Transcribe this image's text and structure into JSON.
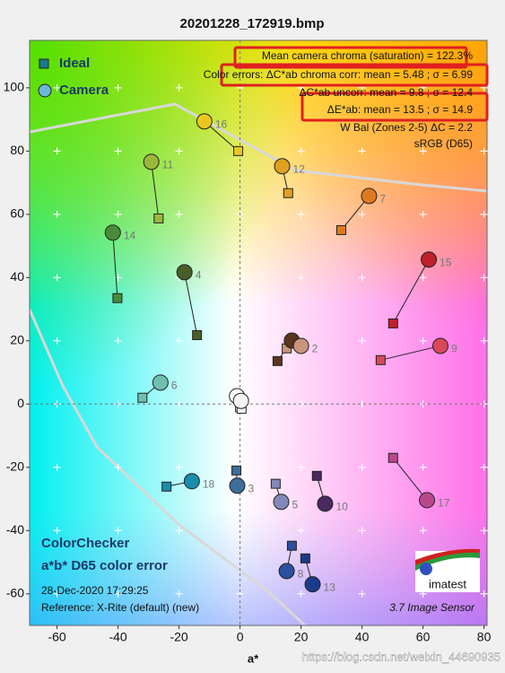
{
  "chart_data": {
    "type": "scatter",
    "title": "20201228_172919.bmp",
    "xlabel": "a*",
    "xlim": [
      -69,
      81
    ],
    "ylim": [
      -70,
      115
    ],
    "xticks": [
      -60,
      -40,
      -20,
      0,
      20,
      40,
      60,
      80
    ],
    "yticks": [
      -60,
      -40,
      -20,
      0,
      20,
      40,
      60,
      80,
      100
    ],
    "grid": true,
    "legend": "upper left",
    "point_labels": [
      null,
      "2",
      "3",
      "4",
      "5",
      "6",
      "7",
      "8",
      "9",
      "10",
      "11",
      "12",
      "13",
      "14",
      "15",
      "16",
      "17",
      "18",
      null,
      null
    ],
    "point_colors": [
      "#5a3520",
      "#c8957c",
      "#3b6e9a",
      "#4a5e28",
      "#8288b8",
      "#6fc0b0",
      "#dd7a1f",
      "#2c4fa0",
      "#d84858",
      "#4a2a5e",
      "#9ab83a",
      "#e0a020",
      "#1a3a8a",
      "#4a8c3a",
      "#c0202a",
      "#e8c820",
      "#b8488a",
      "#1a8cae",
      "#ffffff",
      "#f4f4f4"
    ],
    "series": [
      {
        "name": "Ideal",
        "color": "#1a7a8a",
        "x": [
          12.3,
          15.3,
          -1.2,
          -14.1,
          11.7,
          -32.0,
          33.2,
          17.0,
          46.1,
          25.2,
          -26.7,
          15.8,
          21.4,
          -40.2,
          50.2,
          -0.6,
          50.2,
          -24.1,
          0.0,
          0.5
        ],
        "values": [
          13.6,
          17.6,
          -21.0,
          21.8,
          -25.2,
          2.0,
          55.0,
          -44.8,
          13.9,
          -22.7,
          58.7,
          66.7,
          -48.8,
          33.5,
          25.5,
          80.0,
          -17.0,
          -26.1,
          -1.0,
          -1.5
        ]
      },
      {
        "name": "Camera",
        "color": "#6ab8d8",
        "x": [
          17.0,
          20.0,
          -0.9,
          -18.2,
          13.5,
          -26.1,
          42.3,
          15.3,
          65.7,
          27.9,
          -29.1,
          13.8,
          23.8,
          -41.7,
          61.9,
          -11.7,
          61.3,
          -15.8,
          -1.0,
          0.3
        ],
        "values": [
          20.1,
          18.4,
          -25.8,
          41.7,
          -30.9,
          6.8,
          65.8,
          -52.8,
          18.4,
          -31.5,
          76.6,
          75.2,
          -57.0,
          54.2,
          45.7,
          89.4,
          -30.4,
          -24.4,
          2.5,
          1.0
        ]
      }
    ],
    "annotations": [
      "Mean camera chroma (saturation) = 122.3%",
      "Color errors: ΔC*ab chroma corr:  mean = 5.48 ;  σ = 6.99",
      "ΔC*ab uncorr:  mean = 9.8 ;  σ = 12.4",
      "ΔE*ab:  mean = 13.5 ;  σ = 14.9",
      "W Bal (Zones 2-5) ΔC = 2.2",
      "sRGB (D65)"
    ],
    "footer_left": [
      "ColorChecker",
      "a*b* D65 color error",
      "28-Dec-2020 17:29:25",
      "Reference: X-Rite (default) (new)"
    ],
    "footer_right": "3.7  Image Sensor",
    "logo": "imatest",
    "watermark": "https://blog.csdn.net/weixin_44690935"
  }
}
